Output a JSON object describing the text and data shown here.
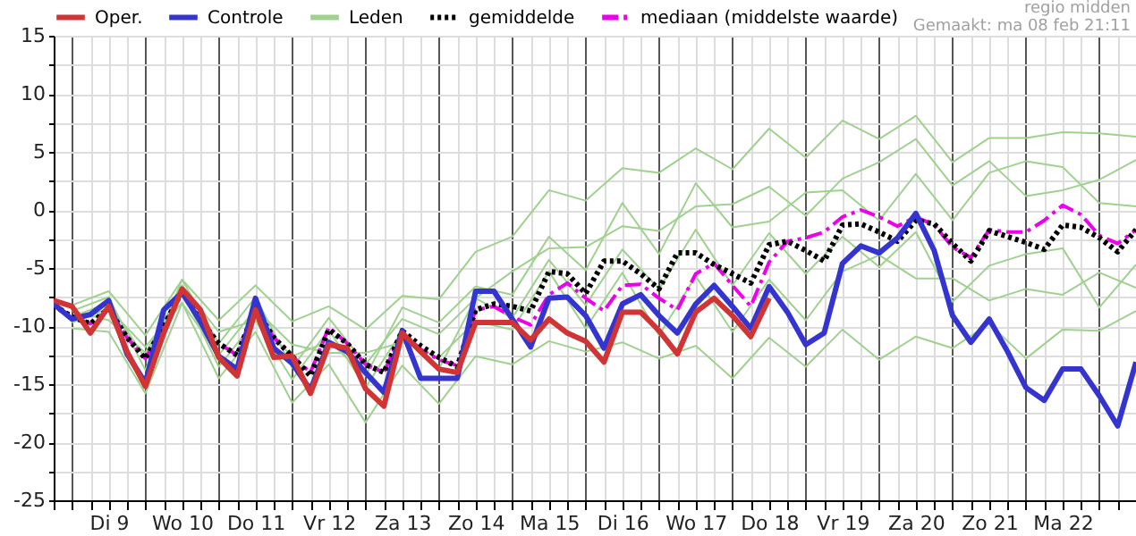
{
  "chart_data": {
    "type": "line",
    "annotations": [
      "regio midden",
      "Gemaakt: ma 08 feb 21:11"
    ],
    "x": [
      "--02-08T18:00",
      "--02-09T00:00",
      "--02-09T06:00",
      "--02-09T12:00",
      "--02-09T18:00",
      "--02-10T00:00",
      "--02-10T06:00",
      "--02-10T12:00",
      "--02-10T18:00",
      "--02-11T00:00",
      "--02-11T06:00",
      "--02-11T12:00",
      "--02-11T18:00",
      "--02-12T00:00",
      "--02-12T06:00",
      "--02-12T12:00",
      "--02-12T18:00",
      "--02-13T00:00",
      "--02-13T06:00",
      "--02-13T12:00",
      "--02-13T18:00",
      "--02-14T00:00",
      "--02-14T06:00",
      "--02-14T12:00",
      "--02-14T18:00",
      "--02-15T00:00",
      "--02-15T06:00",
      "--02-15T12:00",
      "--02-15T18:00",
      "--02-16T00:00",
      "--02-16T06:00",
      "--02-16T12:00",
      "--02-16T18:00",
      "--02-17T00:00",
      "--02-17T06:00",
      "--02-17T12:00",
      "--02-17T18:00",
      "--02-18T00:00",
      "--02-18T06:00",
      "--02-18T12:00",
      "--02-18T18:00",
      "--02-19T00:00",
      "--02-19T06:00",
      "--02-19T12:00",
      "--02-19T18:00",
      "--02-20T00:00",
      "--02-20T06:00",
      "--02-20T12:00",
      "--02-20T18:00",
      "--02-21T00:00",
      "--02-21T06:00",
      "--02-21T12:00",
      "--02-21T18:00",
      "--02-22T00:00",
      "--02-22T06:00",
      "--02-22T12:00",
      "--02-22T18:00",
      "--02-23T00:00",
      "--02-23T06:00",
      "--02-23T12:00"
    ],
    "series": [
      {
        "name": "Oper.",
        "color": "#d03434",
        "values": [
          -7.8,
          -8.3,
          -10.6,
          -8.3,
          -12.2,
          -15.2,
          -10.6,
          -6.8,
          -8.6,
          -12.7,
          -14.3,
          -8.6,
          -12.7,
          -12.6,
          -15.8,
          -11.6,
          -11.9,
          -15.4,
          -16.9,
          -10.6,
          -12.2,
          -13.7,
          -14.0,
          -9.7,
          -9.7,
          -9.7,
          -11.2,
          -9.4,
          -10.6,
          -11.3,
          -13.1,
          -8.8,
          -8.8,
          -10.4,
          -12.4,
          -8.8,
          -7.6,
          -9.1,
          -10.9,
          -7.6,
          null,
          null,
          null,
          null,
          null,
          null,
          null,
          null,
          null,
          null,
          null,
          null,
          null,
          null,
          null,
          null,
          null,
          null,
          null,
          null
        ]
      },
      {
        "name": "Controle",
        "color": "#3434d0",
        "values": [
          -8.1,
          -9.4,
          -9.0,
          -7.8,
          -12.4,
          -14.9,
          -8.6,
          -7.1,
          -9.6,
          -12.6,
          -13.7,
          -7.6,
          -11.9,
          -13.2,
          -15.5,
          -11.4,
          -12.2,
          -14,
          -15.7,
          -10.4,
          -14.5,
          -14.5,
          -14.5,
          -7.0,
          -7.0,
          -9.4,
          -11.8,
          -7.6,
          -7.5,
          -9.1,
          -11.9,
          -8.1,
          -7.3,
          -9.1,
          -10.6,
          -8.1,
          -6.5,
          -8.3,
          -10.2,
          -6.6,
          -8.8,
          -11.6,
          -10.6,
          -4.6,
          -3.1,
          -3.7,
          -2.4,
          -0.3,
          -3.5,
          -9.1,
          -11.4,
          -9.4,
          -12.2,
          -15.3,
          -16.4,
          -13.7,
          -13.7,
          -16.0,
          -18.6,
          -13.1
        ]
      },
      {
        "name": "Leden",
        "color": "#9fd18f",
        "x": [
          "--02-09T00:00",
          "--02-09T12:00",
          "--02-10T00:00",
          "--02-10T12:00",
          "--02-11T00:00",
          "--02-11T12:00",
          "--02-12T00:00",
          "--02-12T12:00",
          "--02-13T00:00",
          "--02-13T12:00",
          "--02-14T00:00",
          "--02-14T12:00",
          "--02-15T00:00",
          "--02-15T12:00",
          "--02-16T00:00",
          "--02-16T12:00",
          "--02-17T00:00",
          "--02-17T12:00",
          "--02-18T00:00",
          "--02-18T12:00",
          "--02-19T00:00",
          "--02-19T12:00",
          "--02-20T00:00",
          "--02-20T12:00",
          "--02-21T00:00",
          "--02-21T12:00",
          "--02-22T00:00",
          "--02-22T12:00",
          "--02-23T00:00",
          "--02-23T12:00"
        ],
        "values": [
          -8.2,
          -7,
          -10.8,
          -6,
          -9.5,
          -6.5,
          -9.6,
          -8.3,
          -10.3,
          -7.4,
          -7.7,
          -3.6,
          -2.3,
          1.7,
          0.8,
          3.6,
          3.2,
          5.3,
          3.5,
          7,
          4.5,
          7.7,
          6.1,
          8.1,
          4.1,
          6.2,
          6.2,
          6.7,
          6.6,
          6.3
        ]
      },
      {
        "color": "#9fd18f",
        "x": [
          "--02-09T00:00",
          "--02-09T12:00",
          "--02-10T00:00",
          "--02-10T12:00",
          "--02-11T00:00",
          "--02-11T12:00",
          "--02-12T00:00",
          "--02-12T12:00",
          "--02-13T00:00",
          "--02-13T12:00",
          "--02-14T00:00",
          "--02-14T12:00",
          "--02-15T00:00",
          "--02-15T12:00",
          "--02-16T00:00",
          "--02-16T12:00",
          "--02-17T00:00",
          "--02-17T12:00",
          "--02-18T00:00",
          "--02-18T12:00",
          "--02-19T00:00",
          "--02-19T12:00",
          "--02-20T00:00",
          "--02-20T12:00",
          "--02-21T00:00",
          "--02-21T12:00",
          "--02-22T00:00",
          "--02-22T12:00",
          "--02-23T00:00",
          "--02-23T12:00"
        ],
        "values": [
          -10.2,
          -10.5,
          -15.8,
          -8,
          -14.5,
          -10.5,
          -16.6,
          -13.3,
          -18.3,
          -13.4,
          -16.7,
          -12.6,
          -13.3,
          -11.3,
          -12.2,
          -11.4,
          -12.8,
          -11.7,
          -14.5,
          -11,
          -13.5,
          -10.3,
          -12.9,
          -10.9,
          -11.9,
          -9.8,
          -12.8,
          -10.3,
          -10.4,
          -8.7
        ]
      },
      {
        "color": "#9fd18f",
        "x": [
          "--02-09T00:00",
          "--02-09T12:00",
          "--02-10T00:00",
          "--02-10T12:00",
          "--02-11T00:00",
          "--02-11T12:00",
          "--02-12T00:00",
          "--02-12T12:00",
          "--02-13T00:00",
          "--02-13T12:00",
          "--02-14T00:00",
          "--02-14T12:00",
          "--02-15T00:00",
          "--02-15T12:00",
          "--02-16T00:00",
          "--02-16T12:00",
          "--02-17T00:00",
          "--02-17T12:00",
          "--02-18T00:00",
          "--02-18T12:00",
          "--02-19T00:00",
          "--02-19T12:00",
          "--02-20T00:00",
          "--02-20T12:00",
          "--02-21T00:00",
          "--02-21T12:00",
          "--02-22T00:00",
          "--02-22T12:00",
          "--02-23T00:00",
          "--02-23T12:00"
        ],
        "values": [
          -8.7,
          -7.5,
          -13.8,
          -6,
          -11.5,
          -7.5,
          -13.6,
          -9.3,
          -13.3,
          -9.4,
          -10.7,
          -7.6,
          -5.3,
          -3.3,
          -3.2,
          -1.4,
          -1.8,
          0.3,
          0.5,
          2,
          -0.5,
          2.7,
          4.1,
          6.1,
          2.1,
          4.2,
          1.2,
          1.7,
          2.6,
          4.3
        ]
      },
      {
        "color": "#9fd18f",
        "x": [
          "--02-09T00:00",
          "--02-09T12:00",
          "--02-10T00:00",
          "--02-10T12:00",
          "--02-11T00:00",
          "--02-11T12:00",
          "--02-12T00:00",
          "--02-12T12:00",
          "--02-13T00:00",
          "--02-13T12:00",
          "--02-14T00:00",
          "--02-14T12:00",
          "--02-15T00:00",
          "--02-15T12:00",
          "--02-16T00:00",
          "--02-16T12:00",
          "--02-17T00:00",
          "--02-17T12:00",
          "--02-18T00:00",
          "--02-18T12:00",
          "--02-19T00:00",
          "--02-19T12:00",
          "--02-20T00:00",
          "--02-20T12:00",
          "--02-21T00:00",
          "--02-21T12:00",
          "--02-22T00:00",
          "--02-22T12:00",
          "--02-23T00:00",
          "--02-23T12:00"
        ],
        "values": [
          -9.7,
          -8.5,
          -11.8,
          -8,
          -12.5,
          -8.5,
          -11.6,
          -12.3,
          -12.3,
          -11.4,
          -12.7,
          -9.6,
          -10.3,
          -5.3,
          -10.2,
          -5.4,
          -10.8,
          -5.7,
          -10.5,
          -6,
          -9.5,
          -5.3,
          -3.9,
          -5.9,
          -5.9,
          -7.8,
          -6.8,
          -7.3,
          -5.4,
          -6.7
        ]
      },
      {
        "color": "#9fd18f",
        "x": [
          "--02-09T00:00",
          "--02-09T12:00",
          "--02-10T00:00",
          "--02-10T12:00",
          "--02-11T00:00",
          "--02-11T12:00",
          "--02-12T00:00",
          "--02-12T12:00",
          "--02-13T00:00",
          "--02-13T12:00",
          "--02-14T00:00",
          "--02-14T12:00",
          "--02-15T00:00",
          "--02-15T12:00",
          "--02-16T00:00",
          "--02-16T12:00",
          "--02-17T00:00",
          "--02-17T12:00",
          "--02-18T00:00",
          "--02-18T12:00",
          "--02-19T00:00",
          "--02-19T12:00",
          "--02-20T00:00",
          "--02-20T12:00",
          "--02-21T00:00",
          "--02-21T12:00",
          "--02-22T00:00",
          "--02-22T12:00",
          "--02-23T00:00",
          "--02-23T12:00"
        ],
        "values": [
          -9.2,
          -8,
          -12.8,
          -6.5,
          -10.5,
          -9.5,
          -12.6,
          -11.3,
          -14.3,
          -8.4,
          -9.7,
          -6.6,
          -7.3,
          -2.3,
          -5.2,
          0.6,
          -3.8,
          2.3,
          -1.5,
          -1,
          1.5,
          1.7,
          -0.9,
          3.1,
          -0.9,
          3.2,
          4.2,
          3.7,
          0.6,
          0.3
        ]
      },
      {
        "color": "#9fd18f",
        "x": [
          "--02-09T00:00",
          "--02-09T12:00",
          "--02-10T00:00",
          "--02-10T12:00",
          "--02-11T00:00",
          "--02-11T12:00",
          "--02-12T00:00",
          "--02-12T12:00",
          "--02-13T00:00",
          "--02-13T12:00",
          "--02-14T00:00",
          "--02-14T12:00",
          "--02-15T00:00",
          "--02-15T12:00",
          "--02-16T00:00",
          "--02-16T12:00",
          "--02-17T00:00",
          "--02-17T12:00",
          "--02-18T00:00",
          "--02-18T12:00",
          "--02-19T00:00",
          "--02-19T12:00",
          "--02-20T00:00",
          "--02-20T12:00",
          "--02-21T00:00",
          "--02-21T12:00",
          "--02-22T00:00",
          "--02-22T12:00",
          "--02-23T00:00",
          "--02-23T12:00"
        ],
        "values": [
          -8.7,
          -9.5,
          -12.3,
          -7,
          -13.5,
          -9.5,
          -14.6,
          -10.3,
          -15.3,
          -10.4,
          -13.7,
          -7.6,
          -9.3,
          -4.3,
          -8.2,
          -3.4,
          -6.8,
          -1.7,
          -6.5,
          -2,
          -5.5,
          -2.3,
          -4.9,
          -1.9,
          -7.9,
          -4.8,
          -3.8,
          -3.3,
          -8.4,
          -4.7
        ]
      },
      {
        "name": "gemiddelde",
        "color": "#000000",
        "line_style": "dotted",
        "values": [
          -8.2,
          -9.2,
          -9.8,
          -8.5,
          -11,
          -12.8,
          -10,
          -7,
          -9.5,
          -11.5,
          -12.5,
          -8.5,
          -11,
          -12.6,
          -14.3,
          -10.3,
          -11.5,
          -13.3,
          -14,
          -10.4,
          -11.7,
          -12.7,
          -13.5,
          -8.6,
          -8.1,
          -8.3,
          -8.7,
          -5.3,
          -5.5,
          -7.2,
          -4.4,
          -4.4,
          -5.5,
          -6.8,
          -3.7,
          -3.7,
          -4.7,
          -5.5,
          -6.3,
          -3.0,
          -2.7,
          -3.5,
          -4.4,
          -1.3,
          -1.2,
          -1.9,
          -2.7,
          -0.9,
          -1.2,
          -2.9,
          -4.4,
          -1.8,
          -2.3,
          -2.8,
          -3.4,
          -1.3,
          -1.5,
          -2.4,
          -3.6,
          -1.7
        ]
      },
      {
        "name": "mediaan (middelste waarde)",
        "color": "#ee00ee",
        "line_style": "dashed",
        "values": [
          -8.2,
          -9.2,
          -9.8,
          -8.5,
          -11,
          -12.8,
          -10,
          -7,
          -9.5,
          -11.5,
          -12.5,
          -8.5,
          -11,
          -12.6,
          -14,
          -10.1,
          -11.5,
          -13.3,
          -14,
          -10.5,
          -12,
          -12.9,
          -13.4,
          -8.6,
          -8.3,
          -9.2,
          -9.9,
          -7.3,
          -6.3,
          -7.6,
          -8.7,
          -6.5,
          -6.4,
          -7.6,
          -8.6,
          -5.5,
          -4.6,
          -6.5,
          -8.3,
          -4.5,
          -2.7,
          -2.4,
          -1.9,
          -0.6,
          0.0,
          -0.6,
          -1.4,
          -0.6,
          -1.3,
          -3.2,
          -4.1,
          -1.7,
          -1.9,
          -1.9,
          -0.9,
          0.4,
          -0.4,
          -2.2,
          -2.9,
          -1.7
        ]
      }
    ],
    "xlim": [
      "--02-08T18:00",
      "--02-23T12:00"
    ],
    "xticks": [
      {
        "value": "--02-08T18:00",
        "label": null
      },
      {
        "value": "--02-09T00:00",
        "label": null
      },
      {
        "value": "--02-09T06:00",
        "label": null
      },
      {
        "value": "--02-09T12:00",
        "label": "Di 9"
      },
      {
        "value": "--02-09T18:00",
        "label": null
      },
      {
        "value": "--02-10T00:00",
        "label": null
      },
      {
        "value": "--02-10T06:00",
        "label": null
      },
      {
        "value": "--02-10T12:00",
        "label": "Wo 10"
      },
      {
        "value": "--02-10T18:00",
        "label": null
      },
      {
        "value": "--02-11T00:00",
        "label": null
      },
      {
        "value": "--02-11T06:00",
        "label": null
      },
      {
        "value": "--02-11T12:00",
        "label": "Do 11"
      },
      {
        "value": "--02-11T18:00",
        "label": null
      },
      {
        "value": "--02-12T00:00",
        "label": null
      },
      {
        "value": "--02-12T06:00",
        "label": null
      },
      {
        "value": "--02-12T12:00",
        "label": "Vr 12"
      },
      {
        "value": "--02-12T18:00",
        "label": null
      },
      {
        "value": "--02-13T00:00",
        "label": null
      },
      {
        "value": "--02-13T06:00",
        "label": null
      },
      {
        "value": "--02-13T12:00",
        "label": "Za 13"
      },
      {
        "value": "--02-13T18:00",
        "label": null
      },
      {
        "value": "--02-14T00:00",
        "label": null
      },
      {
        "value": "--02-14T06:00",
        "label": null
      },
      {
        "value": "--02-14T12:00",
        "label": "Zo 14"
      },
      {
        "value": "--02-14T18:00",
        "label": null
      },
      {
        "value": "--02-15T00:00",
        "label": null
      },
      {
        "value": "--02-15T06:00",
        "label": null
      },
      {
        "value": "--02-15T12:00",
        "label": "Ma 15"
      },
      {
        "value": "--02-15T18:00",
        "label": null
      },
      {
        "value": "--02-16T00:00",
        "label": null
      },
      {
        "value": "--02-16T06:00",
        "label": null
      },
      {
        "value": "--02-16T12:00",
        "label": "Di 16"
      },
      {
        "value": "--02-16T18:00",
        "label": null
      },
      {
        "value": "--02-17T00:00",
        "label": null
      },
      {
        "value": "--02-17T06:00",
        "label": null
      },
      {
        "value": "--02-17T12:00",
        "label": "Wo 17"
      },
      {
        "value": "--02-17T18:00",
        "label": null
      },
      {
        "value": "--02-18T00:00",
        "label": null
      },
      {
        "value": "--02-18T06:00",
        "label": null
      },
      {
        "value": "--02-18T12:00",
        "label": "Do 18"
      },
      {
        "value": "--02-18T18:00",
        "label": null
      },
      {
        "value": "--02-19T00:00",
        "label": null
      },
      {
        "value": "--02-19T06:00",
        "label": null
      },
      {
        "value": "--02-19T12:00",
        "label": "Vr 19"
      },
      {
        "value": "--02-19T18:00",
        "label": null
      },
      {
        "value": "--02-20T00:00",
        "label": null
      },
      {
        "value": "--02-20T06:00",
        "label": null
      },
      {
        "value": "--02-20T12:00",
        "label": "Za 20"
      },
      {
        "value": "--02-20T18:00",
        "label": null
      },
      {
        "value": "--02-21T00:00",
        "label": null
      },
      {
        "value": "--02-21T06:00",
        "label": null
      },
      {
        "value": "--02-21T12:00",
        "label": "Zo 21"
      },
      {
        "value": "--02-21T18:00",
        "label": null
      },
      {
        "value": "--02-22T00:00",
        "label": null
      },
      {
        "value": "--02-22T06:00",
        "label": null
      },
      {
        "value": "--02-22T12:00",
        "label": "Ma 22"
      },
      {
        "value": "--02-22T18:00",
        "label": null
      },
      {
        "value": "--02-23T00:00",
        "label": null
      },
      {
        "value": "--02-23T06:00",
        "label": null
      }
    ],
    "ylim": [
      -25,
      15
    ],
    "yticks": [
      -25,
      {
        "value": -22.5,
        "label": null
      },
      -20,
      {
        "value": -17.5,
        "label": null
      },
      -15,
      {
        "value": -12.5,
        "label": null
      },
      -10,
      {
        "value": -7.5,
        "label": null
      },
      -5,
      {
        "value": -2.5,
        "label": null
      },
      0,
      {
        "value": 2.5,
        "label": null
      },
      5,
      {
        "value": 7.5,
        "label": null
      },
      10,
      {
        "value": 12.5,
        "label": null
      },
      15
    ],
    "grid": true,
    "legend": "top"
  }
}
